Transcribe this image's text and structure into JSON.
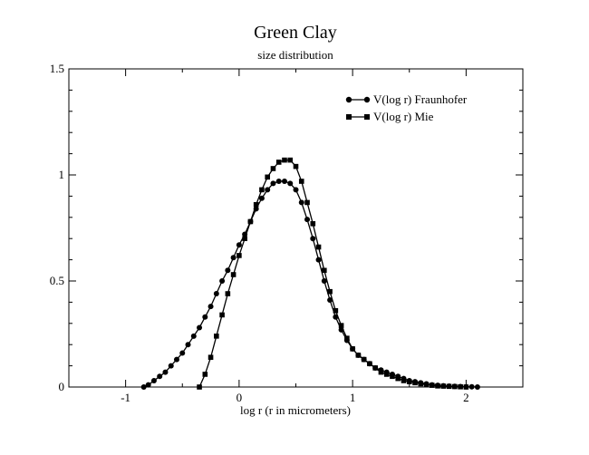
{
  "chart_data": {
    "type": "line",
    "title": "Green Clay",
    "subtitle": "size distribution",
    "xlabel": "log r (r in micrometers)",
    "ylabel": "",
    "xlim": [
      -1.5,
      2.5
    ],
    "ylim": [
      0,
      1.5
    ],
    "x_ticks": [
      -1,
      0,
      1,
      2
    ],
    "x_tick_labels": [
      "-1",
      "0",
      "1",
      "2"
    ],
    "y_ticks": [
      0,
      0.5,
      1,
      1.5
    ],
    "y_tick_labels": [
      "0",
      "0.5",
      "1",
      "1.5"
    ],
    "grid": false,
    "legend_position": "top-right",
    "series": [
      {
        "name": "V(log r) Fraunhofer",
        "marker": "circle",
        "color": "#000000",
        "x": [
          -0.84,
          -0.8,
          -0.75,
          -0.7,
          -0.65,
          -0.6,
          -0.55,
          -0.5,
          -0.45,
          -0.4,
          -0.35,
          -0.3,
          -0.25,
          -0.2,
          -0.15,
          -0.1,
          -0.05,
          0,
          0.05,
          0.1,
          0.15,
          0.2,
          0.25,
          0.3,
          0.35,
          0.4,
          0.45,
          0.5,
          0.55,
          0.6,
          0.65,
          0.7,
          0.75,
          0.8,
          0.85,
          0.9,
          0.95,
          1,
          1.05,
          1.1,
          1.15,
          1.2,
          1.25,
          1.3,
          1.35,
          1.4,
          1.45,
          1.5,
          1.55,
          1.6,
          1.65,
          1.7,
          1.75,
          1.8,
          1.85,
          1.9,
          1.95,
          2,
          2.05,
          2.1
        ],
        "y": [
          0.0,
          0.01,
          0.03,
          0.05,
          0.07,
          0.1,
          0.13,
          0.16,
          0.2,
          0.24,
          0.28,
          0.33,
          0.38,
          0.44,
          0.5,
          0.55,
          0.61,
          0.67,
          0.72,
          0.78,
          0.84,
          0.89,
          0.93,
          0.96,
          0.97,
          0.97,
          0.96,
          0.93,
          0.87,
          0.79,
          0.7,
          0.6,
          0.5,
          0.41,
          0.33,
          0.27,
          0.22,
          0.18,
          0.15,
          0.13,
          0.11,
          0.09,
          0.08,
          0.07,
          0.06,
          0.05,
          0.04,
          0.03,
          0.025,
          0.02,
          0.015,
          0.01,
          0.008,
          0.006,
          0.004,
          0.003,
          0.002,
          0.001,
          0.001,
          0.0
        ]
      },
      {
        "name": "V(log r) Mie",
        "marker": "square",
        "color": "#000000",
        "x": [
          -0.35,
          -0.3,
          -0.25,
          -0.2,
          -0.15,
          -0.1,
          -0.05,
          0,
          0.05,
          0.1,
          0.15,
          0.2,
          0.25,
          0.3,
          0.35,
          0.4,
          0.45,
          0.5,
          0.55,
          0.6,
          0.65,
          0.7,
          0.75,
          0.8,
          0.85,
          0.9,
          0.95,
          1,
          1.05,
          1.1,
          1.15,
          1.2,
          1.25,
          1.3,
          1.35,
          1.4,
          1.45,
          1.5,
          1.55,
          1.6,
          1.65,
          1.7,
          1.75,
          1.8,
          1.85,
          1.9,
          1.95,
          2
        ],
        "y": [
          0.0,
          0.06,
          0.14,
          0.24,
          0.34,
          0.44,
          0.53,
          0.62,
          0.7,
          0.78,
          0.86,
          0.93,
          0.99,
          1.03,
          1.06,
          1.07,
          1.07,
          1.04,
          0.97,
          0.87,
          0.77,
          0.66,
          0.55,
          0.45,
          0.36,
          0.29,
          0.23,
          0.18,
          0.15,
          0.13,
          0.11,
          0.09,
          0.07,
          0.06,
          0.05,
          0.04,
          0.03,
          0.025,
          0.02,
          0.015,
          0.01,
          0.008,
          0.005,
          0.004,
          0.003,
          0.002,
          0.001,
          0.0
        ]
      }
    ]
  }
}
